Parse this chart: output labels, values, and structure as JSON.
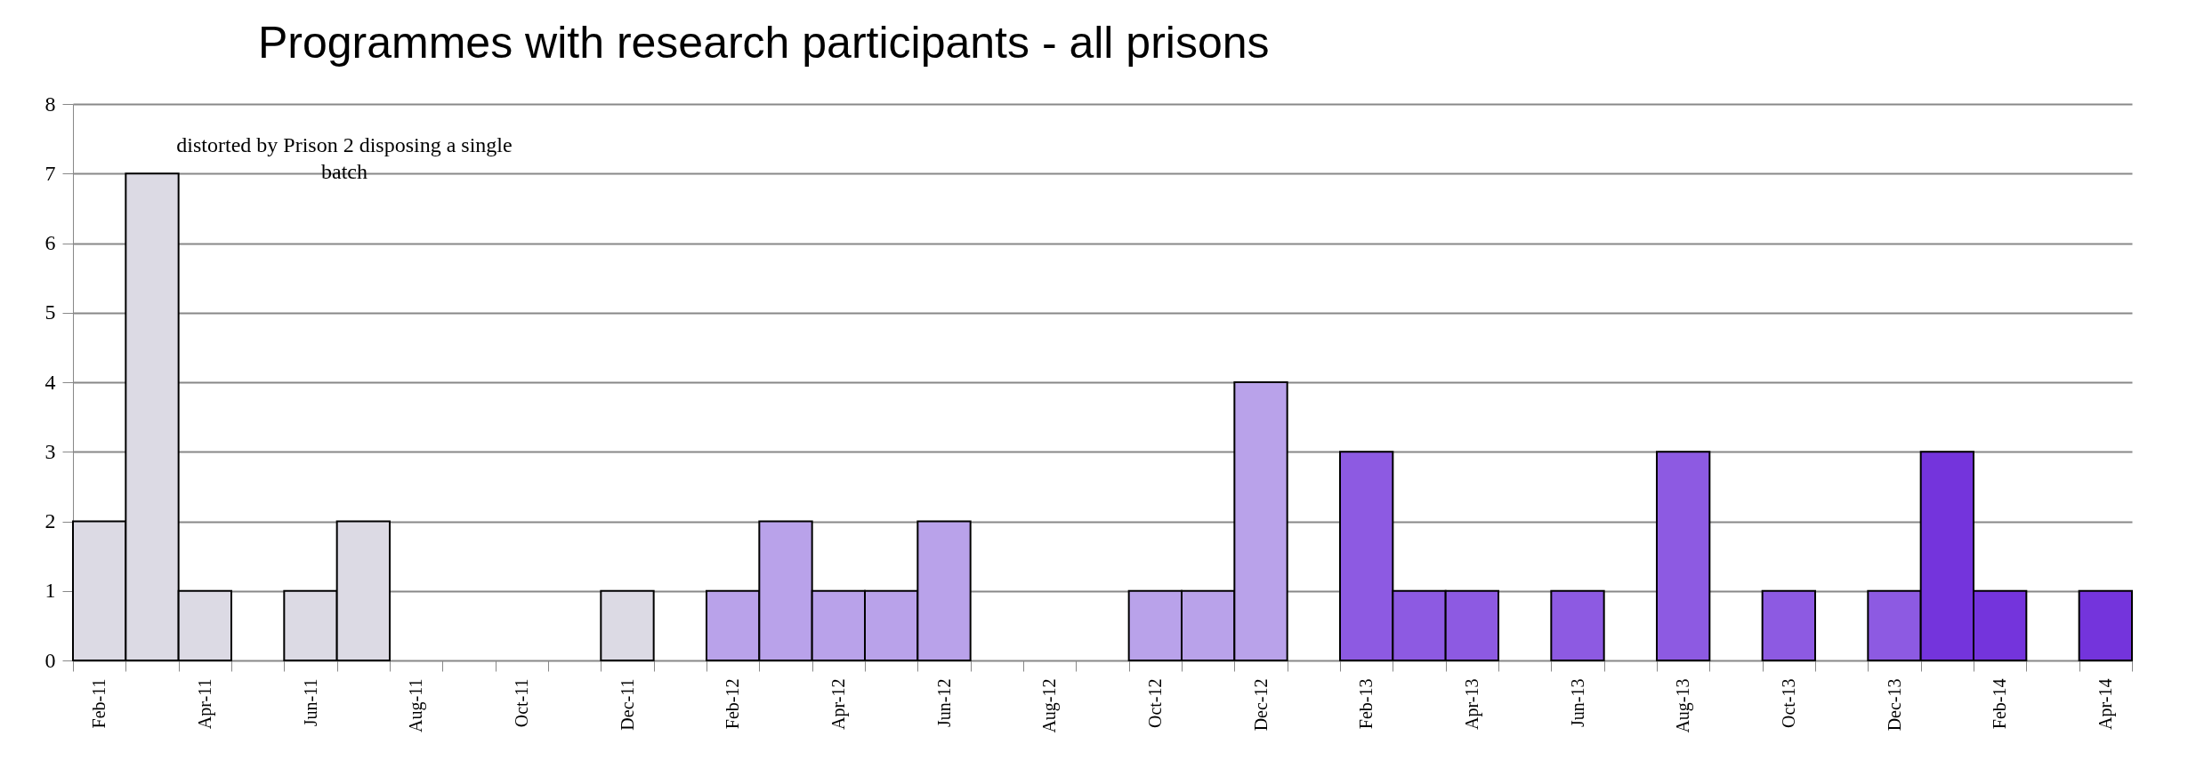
{
  "chart_data": {
    "type": "bar",
    "title": "Programmes with research participants - all prisons",
    "categories": [
      "Feb-11",
      null,
      "Apr-11",
      null,
      "Jun-11",
      null,
      "Aug-11",
      null,
      "Oct-11",
      null,
      "Dec-11",
      null,
      "Feb-12",
      null,
      "Apr-12",
      null,
      "Jun-12",
      null,
      "Aug-12",
      null,
      "Oct-12",
      null,
      "Dec-12",
      null,
      "Feb-13",
      null,
      "Apr-13",
      null,
      "Jun-13",
      null,
      "Aug-13",
      null,
      "Oct-13",
      null,
      "Dec-13",
      null,
      "Feb-14",
      null,
      "Apr-14"
    ],
    "values": [
      2,
      7,
      1,
      0,
      1,
      2,
      0,
      0,
      0,
      0,
      1,
      0,
      1,
      2,
      1,
      1,
      2,
      0,
      0,
      0,
      1,
      1,
      4,
      0,
      3,
      1,
      1,
      0,
      1,
      0,
      3,
      0,
      1,
      0,
      1,
      3,
      1,
      0,
      1
    ],
    "colors": [
      "#dcdae4",
      "#dcdae4",
      "#dcdae4",
      "#dcdae4",
      "#dcdae4",
      "#dcdae4",
      "#dcdae4",
      "#dcdae4",
      "#dcdae4",
      "#dcdae4",
      "#dcdae4",
      "#b9a2ea",
      "#b9a2ea",
      "#b9a2ea",
      "#b9a2ea",
      "#b9a2ea",
      "#b9a2ea",
      "#b9a2ea",
      "#b9a2ea",
      "#b9a2ea",
      "#b9a2ea",
      "#b9a2ea",
      "#b9a2ea",
      "#8d5ae2",
      "#8d5ae2",
      "#8d5ae2",
      "#8d5ae2",
      "#8d5ae2",
      "#8d5ae2",
      "#8d5ae2",
      "#8d5ae2",
      "#8d5ae2",
      "#8d5ae2",
      "#8d5ae2",
      "#8d5ae2",
      "#7434dc",
      "#7434dc",
      "#7434dc",
      "#7434dc"
    ],
    "ylim": [
      0,
      8
    ],
    "yticks": [
      0,
      1,
      2,
      3,
      4,
      5,
      6,
      7,
      8
    ],
    "grid": "y",
    "annotations": [
      "distorted by Prison 2 disposing a single batch"
    ]
  }
}
